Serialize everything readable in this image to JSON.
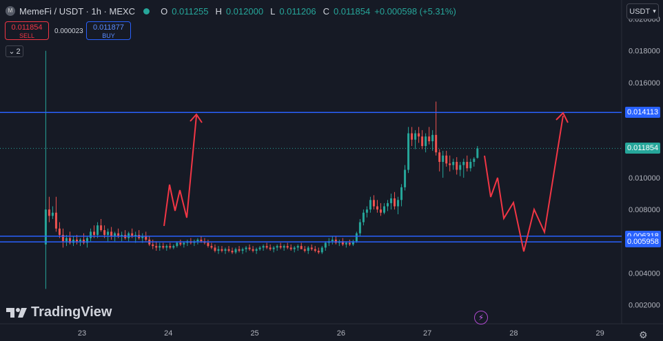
{
  "header": {
    "symbol": "MemeFi / USDT · 1h · MEXC",
    "logo_letter": "M",
    "ohlc": [
      {
        "k": "O",
        "v": "0.011255"
      },
      {
        "k": "H",
        "v": "0.012000"
      },
      {
        "k": "L",
        "v": "0.011206"
      },
      {
        "k": "C",
        "v": "0.011854"
      }
    ],
    "change": "+0.000598 (+5.31%)"
  },
  "trade": {
    "sell_price": "0.011854",
    "sell_label": "SELL",
    "spread": "0.000023",
    "buy_price": "0.011877",
    "buy_label": "BUY"
  },
  "indicators_collapse_count": "2",
  "currency_button": "USDT",
  "brand": "TradingView",
  "colors": {
    "up": "#26a69a",
    "down": "#ef5350",
    "hline": "#2962ff",
    "arrow": "#f23645",
    "bg": "#161a25"
  },
  "chart_data": {
    "type": "candlestick",
    "x_ticks": [
      "23",
      "24",
      "25",
      "26",
      "27",
      "28",
      "29"
    ],
    "y_ticks": [
      "0.002000",
      "0.004000",
      "0.006000",
      "0.008000",
      "0.010000",
      "0.012000",
      "0.014000",
      "0.016000",
      "0.018000",
      "0.020000"
    ],
    "ylim": [
      0.0008,
      0.0212
    ],
    "xlim": [
      22.05,
      29.25
    ],
    "last_price": "0.011854",
    "horizontal_lines": [
      {
        "value": 0.014113,
        "label": "0.014113"
      },
      {
        "value": 0.006318,
        "label": "0.006318"
      },
      {
        "value": 0.005958,
        "label": "0.005958"
      }
    ],
    "candles": [
      {
        "t": 22.58,
        "o": 0.0058,
        "h": 0.018,
        "l": 0.003,
        "c": 0.008
      },
      {
        "t": 22.62,
        "o": 0.008,
        "h": 0.0088,
        "l": 0.0072,
        "c": 0.0076
      },
      {
        "t": 22.66,
        "o": 0.0076,
        "h": 0.0082,
        "l": 0.0074,
        "c": 0.0078
      },
      {
        "t": 22.7,
        "o": 0.0078,
        "h": 0.0088,
        "l": 0.0066,
        "c": 0.0068
      },
      {
        "t": 22.74,
        "o": 0.0068,
        "h": 0.0072,
        "l": 0.0062,
        "c": 0.0064
      },
      {
        "t": 22.78,
        "o": 0.0064,
        "h": 0.0068,
        "l": 0.0056,
        "c": 0.006
      },
      {
        "t": 22.82,
        "o": 0.006,
        "h": 0.0064,
        "l": 0.0057,
        "c": 0.0062
      },
      {
        "t": 22.86,
        "o": 0.0062,
        "h": 0.0066,
        "l": 0.0058,
        "c": 0.0059
      },
      {
        "t": 22.9,
        "o": 0.0059,
        "h": 0.0063,
        "l": 0.0057,
        "c": 0.0061
      },
      {
        "t": 22.94,
        "o": 0.0061,
        "h": 0.0064,
        "l": 0.0058,
        "c": 0.006
      },
      {
        "t": 22.98,
        "o": 0.006,
        "h": 0.0062,
        "l": 0.0057,
        "c": 0.0061
      },
      {
        "t": 23.02,
        "o": 0.0061,
        "h": 0.0065,
        "l": 0.0058,
        "c": 0.0059
      },
      {
        "t": 23.06,
        "o": 0.0059,
        "h": 0.0063,
        "l": 0.0056,
        "c": 0.0062
      },
      {
        "t": 23.1,
        "o": 0.0062,
        "h": 0.0068,
        "l": 0.006,
        "c": 0.0066
      },
      {
        "t": 23.14,
        "o": 0.0066,
        "h": 0.007,
        "l": 0.0062,
        "c": 0.0064
      },
      {
        "t": 23.18,
        "o": 0.0064,
        "h": 0.0072,
        "l": 0.0062,
        "c": 0.007
      },
      {
        "t": 23.22,
        "o": 0.007,
        "h": 0.0074,
        "l": 0.0066,
        "c": 0.0067
      },
      {
        "t": 23.26,
        "o": 0.0067,
        "h": 0.007,
        "l": 0.0062,
        "c": 0.0064
      },
      {
        "t": 23.3,
        "o": 0.0064,
        "h": 0.0068,
        "l": 0.006,
        "c": 0.0066
      },
      {
        "t": 23.34,
        "o": 0.0066,
        "h": 0.0069,
        "l": 0.0061,
        "c": 0.0063
      },
      {
        "t": 23.38,
        "o": 0.0063,
        "h": 0.0066,
        "l": 0.006,
        "c": 0.0065
      },
      {
        "t": 23.42,
        "o": 0.0065,
        "h": 0.0068,
        "l": 0.0062,
        "c": 0.0063
      },
      {
        "t": 23.46,
        "o": 0.0063,
        "h": 0.0066,
        "l": 0.006,
        "c": 0.0064
      },
      {
        "t": 23.5,
        "o": 0.0064,
        "h": 0.0067,
        "l": 0.0061,
        "c": 0.0062
      },
      {
        "t": 23.54,
        "o": 0.0062,
        "h": 0.0066,
        "l": 0.006,
        "c": 0.0065
      },
      {
        "t": 23.58,
        "o": 0.0065,
        "h": 0.0068,
        "l": 0.0062,
        "c": 0.0063
      },
      {
        "t": 23.62,
        "o": 0.0063,
        "h": 0.0066,
        "l": 0.0059,
        "c": 0.0064
      },
      {
        "t": 23.66,
        "o": 0.0064,
        "h": 0.0067,
        "l": 0.0061,
        "c": 0.0062
      },
      {
        "t": 23.7,
        "o": 0.0062,
        "h": 0.0065,
        "l": 0.0059,
        "c": 0.0063
      },
      {
        "t": 23.74,
        "o": 0.0063,
        "h": 0.0066,
        "l": 0.006,
        "c": 0.0061
      },
      {
        "t": 23.78,
        "o": 0.0061,
        "h": 0.0063,
        "l": 0.0057,
        "c": 0.0058
      },
      {
        "t": 23.82,
        "o": 0.0058,
        "h": 0.0061,
        "l": 0.0055,
        "c": 0.0057
      },
      {
        "t": 23.86,
        "o": 0.0057,
        "h": 0.006,
        "l": 0.0054,
        "c": 0.0056
      },
      {
        "t": 23.9,
        "o": 0.0056,
        "h": 0.0059,
        "l": 0.0054,
        "c": 0.0057
      },
      {
        "t": 23.94,
        "o": 0.0057,
        "h": 0.0059,
        "l": 0.0055,
        "c": 0.0056
      },
      {
        "t": 23.98,
        "o": 0.0056,
        "h": 0.0058,
        "l": 0.0054,
        "c": 0.0057
      },
      {
        "t": 24.02,
        "o": 0.0057,
        "h": 0.0059,
        "l": 0.0055,
        "c": 0.0056
      },
      {
        "t": 24.06,
        "o": 0.0056,
        "h": 0.0058,
        "l": 0.0055,
        "c": 0.0057
      },
      {
        "t": 24.1,
        "o": 0.0057,
        "h": 0.006,
        "l": 0.0056,
        "c": 0.0059
      },
      {
        "t": 24.14,
        "o": 0.0059,
        "h": 0.0061,
        "l": 0.0057,
        "c": 0.0058
      },
      {
        "t": 24.18,
        "o": 0.0058,
        "h": 0.006,
        "l": 0.0056,
        "c": 0.0059
      },
      {
        "t": 24.22,
        "o": 0.0059,
        "h": 0.0061,
        "l": 0.0057,
        "c": 0.006
      },
      {
        "t": 24.26,
        "o": 0.006,
        "h": 0.0062,
        "l": 0.0058,
        "c": 0.0059
      },
      {
        "t": 24.3,
        "o": 0.0059,
        "h": 0.0061,
        "l": 0.0057,
        "c": 0.006
      },
      {
        "t": 24.34,
        "o": 0.006,
        "h": 0.0062,
        "l": 0.0058,
        "c": 0.0061
      },
      {
        "t": 24.38,
        "o": 0.0061,
        "h": 0.0063,
        "l": 0.0059,
        "c": 0.006
      },
      {
        "t": 24.42,
        "o": 0.006,
        "h": 0.0062,
        "l": 0.0058,
        "c": 0.0059
      },
      {
        "t": 24.46,
        "o": 0.0059,
        "h": 0.0061,
        "l": 0.0056,
        "c": 0.0057
      },
      {
        "t": 24.5,
        "o": 0.0057,
        "h": 0.0059,
        "l": 0.0055,
        "c": 0.0056
      },
      {
        "t": 24.54,
        "o": 0.0056,
        "h": 0.0058,
        "l": 0.0053,
        "c": 0.0054
      },
      {
        "t": 24.58,
        "o": 0.0054,
        "h": 0.0057,
        "l": 0.0052,
        "c": 0.0055
      },
      {
        "t": 24.62,
        "o": 0.0055,
        "h": 0.0057,
        "l": 0.0053,
        "c": 0.0054
      },
      {
        "t": 24.66,
        "o": 0.0054,
        "h": 0.0056,
        "l": 0.0052,
        "c": 0.0055
      },
      {
        "t": 24.7,
        "o": 0.0055,
        "h": 0.0057,
        "l": 0.0053,
        "c": 0.0054
      },
      {
        "t": 24.74,
        "o": 0.0054,
        "h": 0.0056,
        "l": 0.0052,
        "c": 0.0053
      },
      {
        "t": 24.78,
        "o": 0.0053,
        "h": 0.0056,
        "l": 0.0052,
        "c": 0.0055
      },
      {
        "t": 24.82,
        "o": 0.0055,
        "h": 0.0057,
        "l": 0.0053,
        "c": 0.0054
      },
      {
        "t": 24.86,
        "o": 0.0054,
        "h": 0.0056,
        "l": 0.0052,
        "c": 0.0055
      },
      {
        "t": 24.9,
        "o": 0.0055,
        "h": 0.0057,
        "l": 0.0053,
        "c": 0.0056
      },
      {
        "t": 24.94,
        "o": 0.0056,
        "h": 0.0058,
        "l": 0.0054,
        "c": 0.0055
      },
      {
        "t": 24.98,
        "o": 0.0055,
        "h": 0.0057,
        "l": 0.0053,
        "c": 0.0054
      },
      {
        "t": 25.02,
        "o": 0.0054,
        "h": 0.0056,
        "l": 0.0052,
        "c": 0.0055
      },
      {
        "t": 25.06,
        "o": 0.0055,
        "h": 0.0057,
        "l": 0.0054,
        "c": 0.0056
      },
      {
        "t": 25.1,
        "o": 0.0056,
        "h": 0.0058,
        "l": 0.0054,
        "c": 0.0057
      },
      {
        "t": 25.14,
        "o": 0.0057,
        "h": 0.0059,
        "l": 0.0055,
        "c": 0.0056
      },
      {
        "t": 25.18,
        "o": 0.0056,
        "h": 0.0058,
        "l": 0.0054,
        "c": 0.0055
      },
      {
        "t": 25.22,
        "o": 0.0055,
        "h": 0.0057,
        "l": 0.0053,
        "c": 0.0056
      },
      {
        "t": 25.26,
        "o": 0.0056,
        "h": 0.0058,
        "l": 0.0054,
        "c": 0.0057
      },
      {
        "t": 25.3,
        "o": 0.0057,
        "h": 0.0059,
        "l": 0.0055,
        "c": 0.0056
      },
      {
        "t": 25.34,
        "o": 0.0056,
        "h": 0.0058,
        "l": 0.0054,
        "c": 0.0057
      },
      {
        "t": 25.38,
        "o": 0.0057,
        "h": 0.0059,
        "l": 0.0055,
        "c": 0.0056
      },
      {
        "t": 25.42,
        "o": 0.0056,
        "h": 0.0058,
        "l": 0.0054,
        "c": 0.0055
      },
      {
        "t": 25.46,
        "o": 0.0055,
        "h": 0.0057,
        "l": 0.0053,
        "c": 0.0056
      },
      {
        "t": 25.5,
        "o": 0.0056,
        "h": 0.0058,
        "l": 0.0054,
        "c": 0.0057
      },
      {
        "t": 25.54,
        "o": 0.0057,
        "h": 0.0059,
        "l": 0.0055,
        "c": 0.0055
      },
      {
        "t": 25.58,
        "o": 0.0055,
        "h": 0.0057,
        "l": 0.0053,
        "c": 0.0054
      },
      {
        "t": 25.62,
        "o": 0.0054,
        "h": 0.0057,
        "l": 0.0052,
        "c": 0.0056
      },
      {
        "t": 25.66,
        "o": 0.0056,
        "h": 0.0058,
        "l": 0.0054,
        "c": 0.0055
      },
      {
        "t": 25.7,
        "o": 0.0055,
        "h": 0.0057,
        "l": 0.0053,
        "c": 0.0054
      },
      {
        "t": 25.74,
        "o": 0.0054,
        "h": 0.0056,
        "l": 0.0052,
        "c": 0.0053
      },
      {
        "t": 25.78,
        "o": 0.0053,
        "h": 0.0057,
        "l": 0.0052,
        "c": 0.0056
      },
      {
        "t": 25.82,
        "o": 0.0056,
        "h": 0.006,
        "l": 0.0054,
        "c": 0.0059
      },
      {
        "t": 25.86,
        "o": 0.0059,
        "h": 0.0062,
        "l": 0.0057,
        "c": 0.006
      },
      {
        "t": 25.9,
        "o": 0.006,
        "h": 0.0063,
        "l": 0.0058,
        "c": 0.0061
      },
      {
        "t": 25.94,
        "o": 0.0061,
        "h": 0.0063,
        "l": 0.0058,
        "c": 0.0059
      },
      {
        "t": 25.98,
        "o": 0.0059,
        "h": 0.0061,
        "l": 0.0057,
        "c": 0.006
      },
      {
        "t": 26.02,
        "o": 0.006,
        "h": 0.0062,
        "l": 0.0057,
        "c": 0.0058
      },
      {
        "t": 26.06,
        "o": 0.0058,
        "h": 0.006,
        "l": 0.0056,
        "c": 0.0059
      },
      {
        "t": 26.1,
        "o": 0.0059,
        "h": 0.0061,
        "l": 0.0057,
        "c": 0.0058
      },
      {
        "t": 26.14,
        "o": 0.0058,
        "h": 0.0061,
        "l": 0.0057,
        "c": 0.006
      },
      {
        "t": 26.18,
        "o": 0.006,
        "h": 0.0066,
        "l": 0.0059,
        "c": 0.0065
      },
      {
        "t": 26.22,
        "o": 0.0065,
        "h": 0.0074,
        "l": 0.0063,
        "c": 0.0072
      },
      {
        "t": 26.26,
        "o": 0.0072,
        "h": 0.008,
        "l": 0.007,
        "c": 0.0078
      },
      {
        "t": 26.3,
        "o": 0.0078,
        "h": 0.0082,
        "l": 0.0075,
        "c": 0.008
      },
      {
        "t": 26.34,
        "o": 0.008,
        "h": 0.0088,
        "l": 0.0078,
        "c": 0.0086
      },
      {
        "t": 26.38,
        "o": 0.0086,
        "h": 0.0089,
        "l": 0.008,
        "c": 0.0082
      },
      {
        "t": 26.42,
        "o": 0.0082,
        "h": 0.0086,
        "l": 0.0078,
        "c": 0.008
      },
      {
        "t": 26.46,
        "o": 0.008,
        "h": 0.0084,
        "l": 0.0076,
        "c": 0.0078
      },
      {
        "t": 26.5,
        "o": 0.0078,
        "h": 0.0084,
        "l": 0.0077,
        "c": 0.0082
      },
      {
        "t": 26.54,
        "o": 0.0082,
        "h": 0.0086,
        "l": 0.0079,
        "c": 0.0084
      },
      {
        "t": 26.58,
        "o": 0.0084,
        "h": 0.009,
        "l": 0.008,
        "c": 0.0087
      },
      {
        "t": 26.62,
        "o": 0.0087,
        "h": 0.0091,
        "l": 0.008,
        "c": 0.0082
      },
      {
        "t": 26.66,
        "o": 0.0082,
        "h": 0.0088,
        "l": 0.0077,
        "c": 0.0086
      },
      {
        "t": 26.7,
        "o": 0.0086,
        "h": 0.0096,
        "l": 0.0082,
        "c": 0.0094
      },
      {
        "t": 26.74,
        "o": 0.0094,
        "h": 0.0108,
        "l": 0.0092,
        "c": 0.0105
      },
      {
        "t": 26.78,
        "o": 0.0105,
        "h": 0.0132,
        "l": 0.0103,
        "c": 0.0128
      },
      {
        "t": 26.82,
        "o": 0.0128,
        "h": 0.0132,
        "l": 0.012,
        "c": 0.0124
      },
      {
        "t": 26.86,
        "o": 0.0124,
        "h": 0.013,
        "l": 0.0118,
        "c": 0.0128
      },
      {
        "t": 26.9,
        "o": 0.0128,
        "h": 0.0132,
        "l": 0.0122,
        "c": 0.0126
      },
      {
        "t": 26.94,
        "o": 0.0126,
        "h": 0.013,
        "l": 0.0118,
        "c": 0.012
      },
      {
        "t": 26.98,
        "o": 0.012,
        "h": 0.0128,
        "l": 0.0116,
        "c": 0.0126
      },
      {
        "t": 27.02,
        "o": 0.0126,
        "h": 0.0132,
        "l": 0.0121,
        "c": 0.0123
      },
      {
        "t": 27.06,
        "o": 0.0123,
        "h": 0.013,
        "l": 0.0117,
        "c": 0.0127
      },
      {
        "t": 27.1,
        "o": 0.0127,
        "h": 0.0148,
        "l": 0.0114,
        "c": 0.0116
      },
      {
        "t": 27.14,
        "o": 0.0116,
        "h": 0.0118,
        "l": 0.0104,
        "c": 0.011
      },
      {
        "t": 27.18,
        "o": 0.011,
        "h": 0.0117,
        "l": 0.01,
        "c": 0.0114
      },
      {
        "t": 27.22,
        "o": 0.0114,
        "h": 0.0117,
        "l": 0.0107,
        "c": 0.0109
      },
      {
        "t": 27.26,
        "o": 0.0109,
        "h": 0.0114,
        "l": 0.0104,
        "c": 0.0108
      },
      {
        "t": 27.3,
        "o": 0.0108,
        "h": 0.0112,
        "l": 0.0105,
        "c": 0.011
      },
      {
        "t": 27.34,
        "o": 0.011,
        "h": 0.0113,
        "l": 0.0102,
        "c": 0.0105
      },
      {
        "t": 27.38,
        "o": 0.0105,
        "h": 0.011,
        "l": 0.0101,
        "c": 0.0108
      },
      {
        "t": 27.42,
        "o": 0.0108,
        "h": 0.0112,
        "l": 0.01,
        "c": 0.011
      },
      {
        "t": 27.46,
        "o": 0.011,
        "h": 0.0114,
        "l": 0.0104,
        "c": 0.0106
      },
      {
        "t": 27.5,
        "o": 0.0106,
        "h": 0.0112,
        "l": 0.0104,
        "c": 0.011
      },
      {
        "t": 27.54,
        "o": 0.011,
        "h": 0.0113,
        "l": 0.0107,
        "c": 0.0112
      },
      {
        "t": 27.58,
        "o": 0.011255,
        "h": 0.012,
        "l": 0.011206,
        "c": 0.011854
      }
    ]
  }
}
